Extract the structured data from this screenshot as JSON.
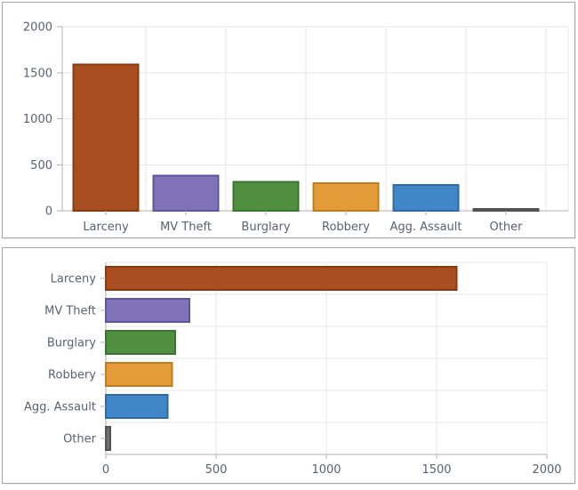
{
  "theme": {
    "panel_border": "#a6a6a6",
    "panel_background": "#ffffff",
    "grid_color": "#e7e7e7",
    "axis_color": "#b0b0b0",
    "label_color": "#5a6270"
  },
  "chart_data": [
    {
      "type": "bar",
      "orientation": "vertical",
      "title": "",
      "xlabel": "",
      "ylabel": "",
      "grid": true,
      "legend": false,
      "categories": [
        "Larceny",
        "MV Theft",
        "Burglary",
        "Robbery",
        "Agg. Assault",
        "Other"
      ],
      "values": [
        1590,
        380,
        315,
        300,
        280,
        20
      ],
      "value_axis": {
        "min": 0,
        "max": 2000,
        "ticks": [
          0,
          500,
          1000,
          1500,
          2000
        ]
      },
      "bar_colors": [
        {
          "fill": "#a94e21",
          "stroke": "#8a3a10"
        },
        {
          "fill": "#8173b8",
          "stroke": "#61549e"
        },
        {
          "fill": "#4f8f3f",
          "stroke": "#3b742f"
        },
        {
          "fill": "#e49b39",
          "stroke": "#c07c1d"
        },
        {
          "fill": "#4186c6",
          "stroke": "#2e6ba6"
        },
        {
          "fill": "#6f6f6f",
          "stroke": "#535353"
        }
      ]
    },
    {
      "type": "bar",
      "orientation": "horizontal",
      "title": "",
      "xlabel": "",
      "ylabel": "",
      "grid": true,
      "legend": false,
      "categories": [
        "Larceny",
        "MV Theft",
        "Burglary",
        "Robbery",
        "Agg. Assault",
        "Other"
      ],
      "values": [
        1590,
        380,
        315,
        300,
        280,
        20
      ],
      "value_axis": {
        "min": 0,
        "max": 2000,
        "ticks": [
          0,
          500,
          1000,
          1500,
          2000
        ]
      },
      "bar_colors": [
        {
          "fill": "#a94e21",
          "stroke": "#8a3a10"
        },
        {
          "fill": "#8173b8",
          "stroke": "#61549e"
        },
        {
          "fill": "#4f8f3f",
          "stroke": "#3b742f"
        },
        {
          "fill": "#e49b39",
          "stroke": "#c07c1d"
        },
        {
          "fill": "#4186c6",
          "stroke": "#2e6ba6"
        },
        {
          "fill": "#6f6f6f",
          "stroke": "#535353"
        }
      ]
    }
  ]
}
